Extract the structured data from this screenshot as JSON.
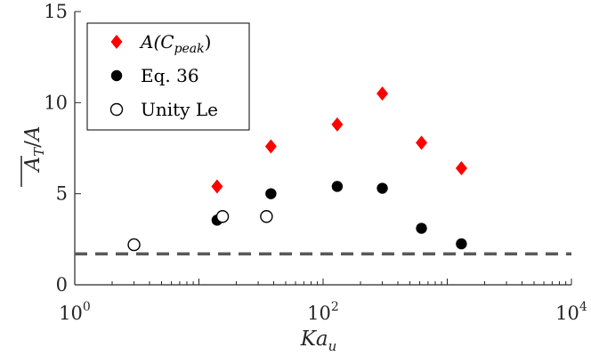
{
  "chart_data": {
    "type": "scatter",
    "xlabel": "Ka",
    "xlabel_sub": "u",
    "ylabel": "A_T / A",
    "xscale": "log",
    "xlim": [
      1,
      10000
    ],
    "ylim": [
      0,
      15
    ],
    "xtick_base": "10",
    "xticks": [
      {
        "value": 1,
        "exp": "0"
      },
      {
        "value": 100,
        "exp": "2"
      },
      {
        "value": 10000,
        "exp": "4"
      }
    ],
    "yticks": [
      {
        "value": 0,
        "label": "0"
      },
      {
        "value": 5,
        "label": "5"
      },
      {
        "value": 10,
        "label": "10"
      },
      {
        "value": 15,
        "label": "15"
      }
    ],
    "grid": false,
    "legend_position": "top-left",
    "reference_line": {
      "y": 1.7,
      "style": "dashed",
      "color": "#595959"
    },
    "series": [
      {
        "name": "A(C_peak)",
        "legend_main": "A(C",
        "legend_sub": "peak",
        "legend_tail": ")",
        "marker": "diamond",
        "color": "#ff0000",
        "x": [
          14,
          38,
          130,
          300,
          620,
          1300
        ],
        "y": [
          5.4,
          7.6,
          8.8,
          10.5,
          7.8,
          6.4
        ]
      },
      {
        "name": "Eq. 36",
        "marker": "filled-circle",
        "color": "#000000",
        "x": [
          14,
          38,
          130,
          300,
          620,
          1300
        ],
        "y": [
          3.55,
          5.0,
          5.4,
          5.3,
          3.1,
          2.25
        ]
      },
      {
        "name": "Unity Le",
        "marker": "open-circle",
        "color": "#000000",
        "x": [
          3,
          15.5,
          35
        ],
        "y": [
          2.2,
          3.75,
          3.75
        ]
      }
    ]
  }
}
